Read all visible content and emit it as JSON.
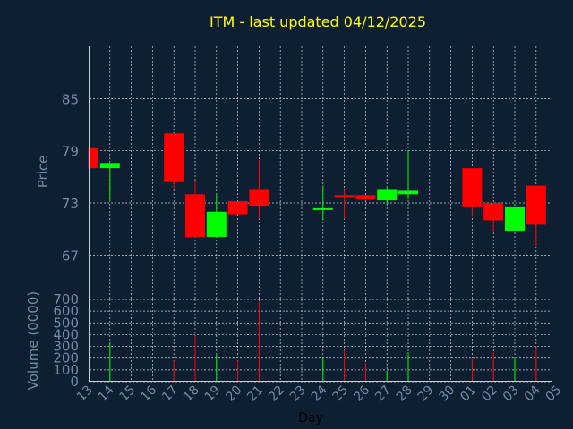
{
  "chart_data": [
    {
      "type": "candlestick",
      "title": "ITM - last updated 04/12/2025",
      "ylabel": "Price",
      "xlabel": "Day",
      "ylim": [
        62,
        91
      ],
      "yticks": [
        67,
        73,
        79,
        85
      ],
      "x_tick_labels": [
        "13",
        "14",
        "15",
        "16",
        "17",
        "18",
        "19",
        "20",
        "21",
        "22",
        "23",
        "24",
        "25",
        "26",
        "27",
        "28",
        "29",
        "30",
        "01",
        "02",
        "03",
        "04",
        "05"
      ],
      "grid": true,
      "colors": {
        "up": "#00ff00",
        "down": "#ff0000",
        "background": "#0f1f32",
        "axes": "#c8d0d8",
        "grid": "#c8d0d8",
        "title": "#ffff00",
        "labels": "#6f8ba7"
      },
      "candles": [
        {
          "day": "13",
          "open": 79.3,
          "close": 77.0,
          "high": 79.3,
          "low": 77.0
        },
        {
          "day": "14",
          "open": 77.0,
          "close": 77.6,
          "high": 77.6,
          "low": 73.2
        },
        {
          "day": "17",
          "open": 81.0,
          "close": 75.4,
          "high": 81.0,
          "low": 74.7
        },
        {
          "day": "18",
          "open": 74.0,
          "close": 69.1,
          "high": 75.5,
          "low": 69.1
        },
        {
          "day": "19",
          "open": 69.1,
          "close": 72.0,
          "high": 74.0,
          "low": 69.1
        },
        {
          "day": "20",
          "open": 73.2,
          "close": 71.6,
          "high": 73.2,
          "low": 71.6
        },
        {
          "day": "21",
          "open": 74.5,
          "close": 72.6,
          "high": 78.0,
          "low": 71.2
        },
        {
          "day": "24",
          "open": 72.2,
          "close": 72.4,
          "high": 75.0,
          "low": 71.0
        },
        {
          "day": "25",
          "open": 73.9,
          "close": 73.7,
          "high": 74.5,
          "low": 71.2
        },
        {
          "day": "26",
          "open": 73.9,
          "close": 73.4,
          "high": 73.9,
          "low": 73.3
        },
        {
          "day": "27",
          "open": 73.3,
          "close": 74.5,
          "high": 74.8,
          "low": 72.9
        },
        {
          "day": "28",
          "open": 74.0,
          "close": 74.4,
          "high": 79.0,
          "low": 73.4
        },
        {
          "day": "01",
          "open": 77.0,
          "close": 72.5,
          "high": 77.0,
          "low": 71.4
        },
        {
          "day": "02",
          "open": 73.0,
          "close": 71.0,
          "high": 73.0,
          "low": 69.6
        },
        {
          "day": "03",
          "open": 69.8,
          "close": 72.5,
          "high": 72.5,
          "low": 69.8
        },
        {
          "day": "04",
          "open": 75.0,
          "close": 70.5,
          "high": 75.0,
          "low": 68.0
        }
      ]
    },
    {
      "type": "bar",
      "ylabel": "Volume (0000)",
      "xlabel": "Day",
      "ylim": [
        0,
        700
      ],
      "yticks": [
        0,
        100,
        200,
        300,
        400,
        500,
        600,
        700
      ],
      "grid": true,
      "bars": [
        {
          "day": "14",
          "value": 330,
          "direction": "up"
        },
        {
          "day": "17",
          "value": 180,
          "direction": "down"
        },
        {
          "day": "18",
          "value": 390,
          "direction": "down"
        },
        {
          "day": "19",
          "value": 230,
          "direction": "up"
        },
        {
          "day": "20",
          "value": 180,
          "direction": "down"
        },
        {
          "day": "21",
          "value": 680,
          "direction": "down"
        },
        {
          "day": "24",
          "value": 210,
          "direction": "up"
        },
        {
          "day": "25",
          "value": 270,
          "direction": "down"
        },
        {
          "day": "26",
          "value": 160,
          "direction": "down"
        },
        {
          "day": "27",
          "value": 90,
          "direction": "up"
        },
        {
          "day": "28",
          "value": 250,
          "direction": "up"
        },
        {
          "day": "01",
          "value": 190,
          "direction": "down"
        },
        {
          "day": "02",
          "value": 250,
          "direction": "down"
        },
        {
          "day": "03",
          "value": 200,
          "direction": "up"
        },
        {
          "day": "04",
          "value": 290,
          "direction": "down"
        }
      ]
    }
  ]
}
